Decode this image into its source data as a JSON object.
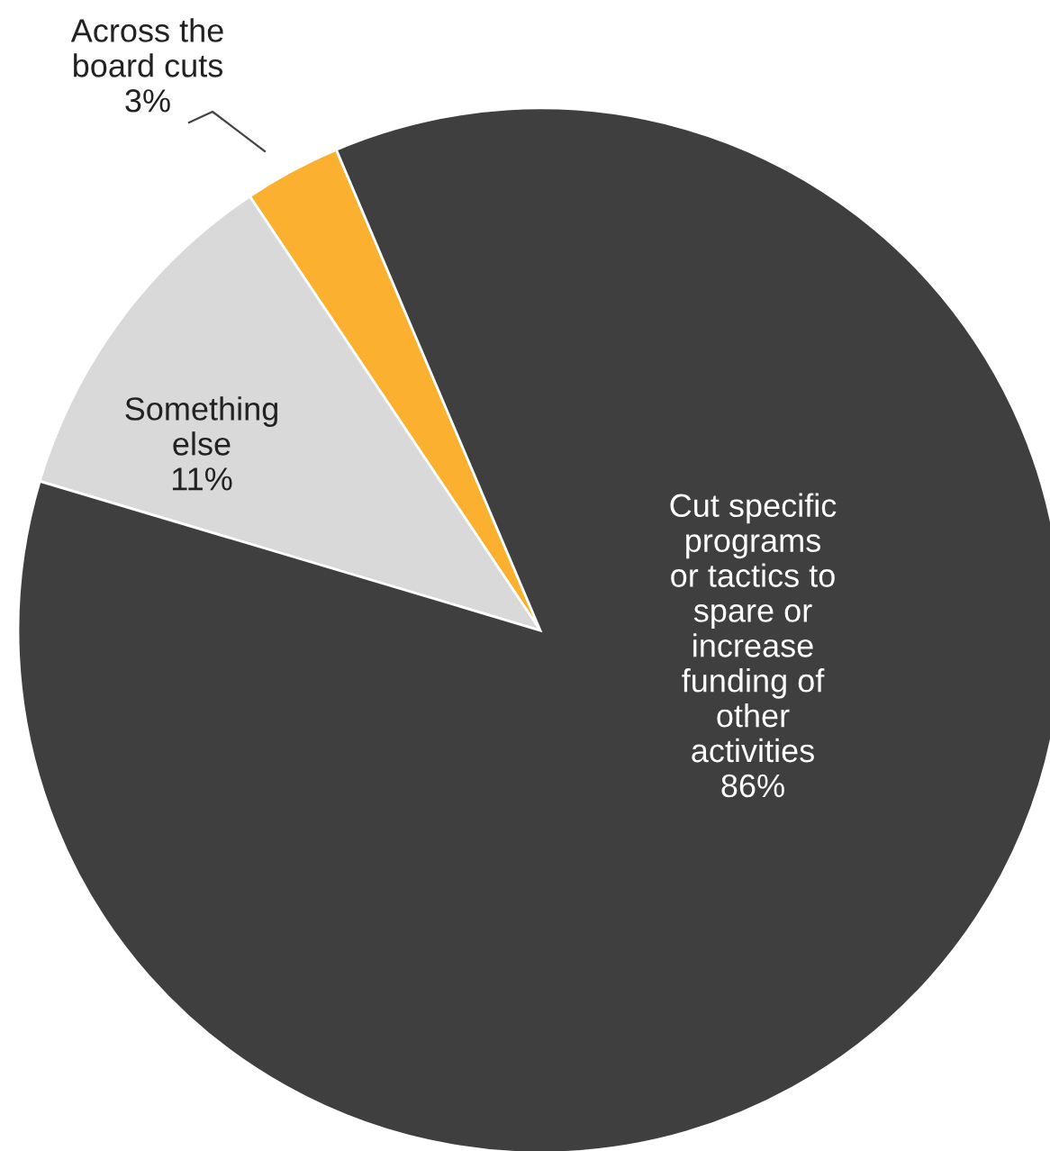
{
  "chart_data": {
    "type": "pie",
    "categories": [
      "Cut specific\nprograms\nor tactics to\nspare or\nincrease\nfunding of\nother\nactivities",
      "Something\nelse",
      "Across the\nboard cuts"
    ],
    "values": [
      86,
      11,
      3
    ],
    "value_labels": [
      "86%",
      "11%",
      "3%"
    ],
    "colors": [
      "#3f3f3f",
      "#d9d9d9",
      "#fbb12f"
    ]
  }
}
